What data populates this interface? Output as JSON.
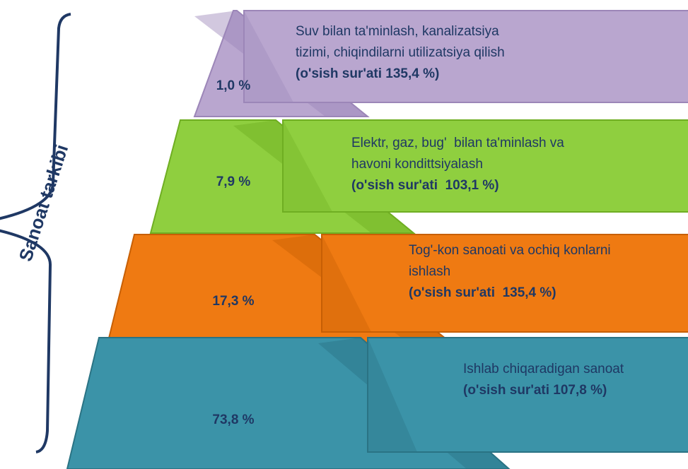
{
  "side_label": "Sanoat tarkibi",
  "levels": [
    {
      "share": "1,0 %",
      "lines": [
        "Suv bilan ta'minlash, kanalizatsiya",
        "tizimi, chiqindilarni utilizatsiya qilish"
      ],
      "growth": "(o'sish sur'ati 135,4 %)"
    },
    {
      "share": "7,9 %",
      "lines": [
        "Elektr, gaz, bug'  bilan ta'minlash va",
        "havoni kondittsiyalash"
      ],
      "growth": "(o'sish sur'ati  103,1 %)"
    },
    {
      "share": "17,3 %",
      "lines": [
        "Tog'-kon sanoati va ochiq konlarni",
        "ishlash"
      ],
      "growth": "(o'sish sur'ati  135,4 %)"
    },
    {
      "share": "73,8 %",
      "lines": [
        "Ishlab chiqaradigan sanoat"
      ],
      "growth": "(o'sish sur'ati 107,8 %)"
    }
  ]
}
